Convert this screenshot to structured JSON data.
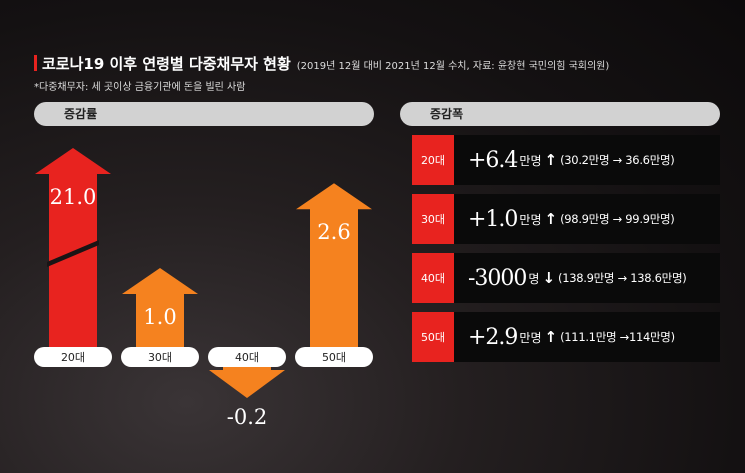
{
  "header": {
    "title": "코로나19 이후 연령별 다중채무자 현황",
    "source": "(2019년 12월 대비 2021년 12월 수치, 자료: 윤창현 국민의힘 국회의원)",
    "note": "*다중채무자: 세 곳이상 금융기관에 돈을 빌린 사람"
  },
  "left_panel": {
    "label": "증감률"
  },
  "right_panel": {
    "label": "증감폭",
    "rows": [
      {
        "tag": "20대",
        "value": "+6.4",
        "unit": "만명",
        "arrow": "↑",
        "detail": "(30.2만명 → 36.6만명)"
      },
      {
        "tag": "30대",
        "value": "+1.0",
        "unit": "만명",
        "arrow": "↑",
        "detail": "(98.9만명 → 99.9만명)"
      },
      {
        "tag": "40대",
        "value": "-3000",
        "unit": "명",
        "arrow": "↓",
        "detail": "(138.9만명 → 138.6만명)"
      },
      {
        "tag": "50대",
        "value": "+2.9",
        "unit": "만명",
        "arrow": "↑",
        "detail": "(111.1만명 →114만명)"
      }
    ]
  },
  "colors": {
    "red": "#e8231f",
    "orange": "#f5821f",
    "pill": "#d2d2d2"
  },
  "chart_data": {
    "type": "bar",
    "categories": [
      "20대",
      "30대",
      "40대",
      "50대"
    ],
    "values": [
      21.0,
      1.0,
      -0.2,
      2.6
    ],
    "value_labels": [
      "21.0",
      "1.0",
      "-0.2",
      "2.6"
    ],
    "axis_break_on_first_bar": true,
    "bar_colors": [
      "#e8231f",
      "#f5821f",
      "#f5821f",
      "#f5821f"
    ],
    "title": "",
    "xlabel": "",
    "ylabel": ""
  }
}
